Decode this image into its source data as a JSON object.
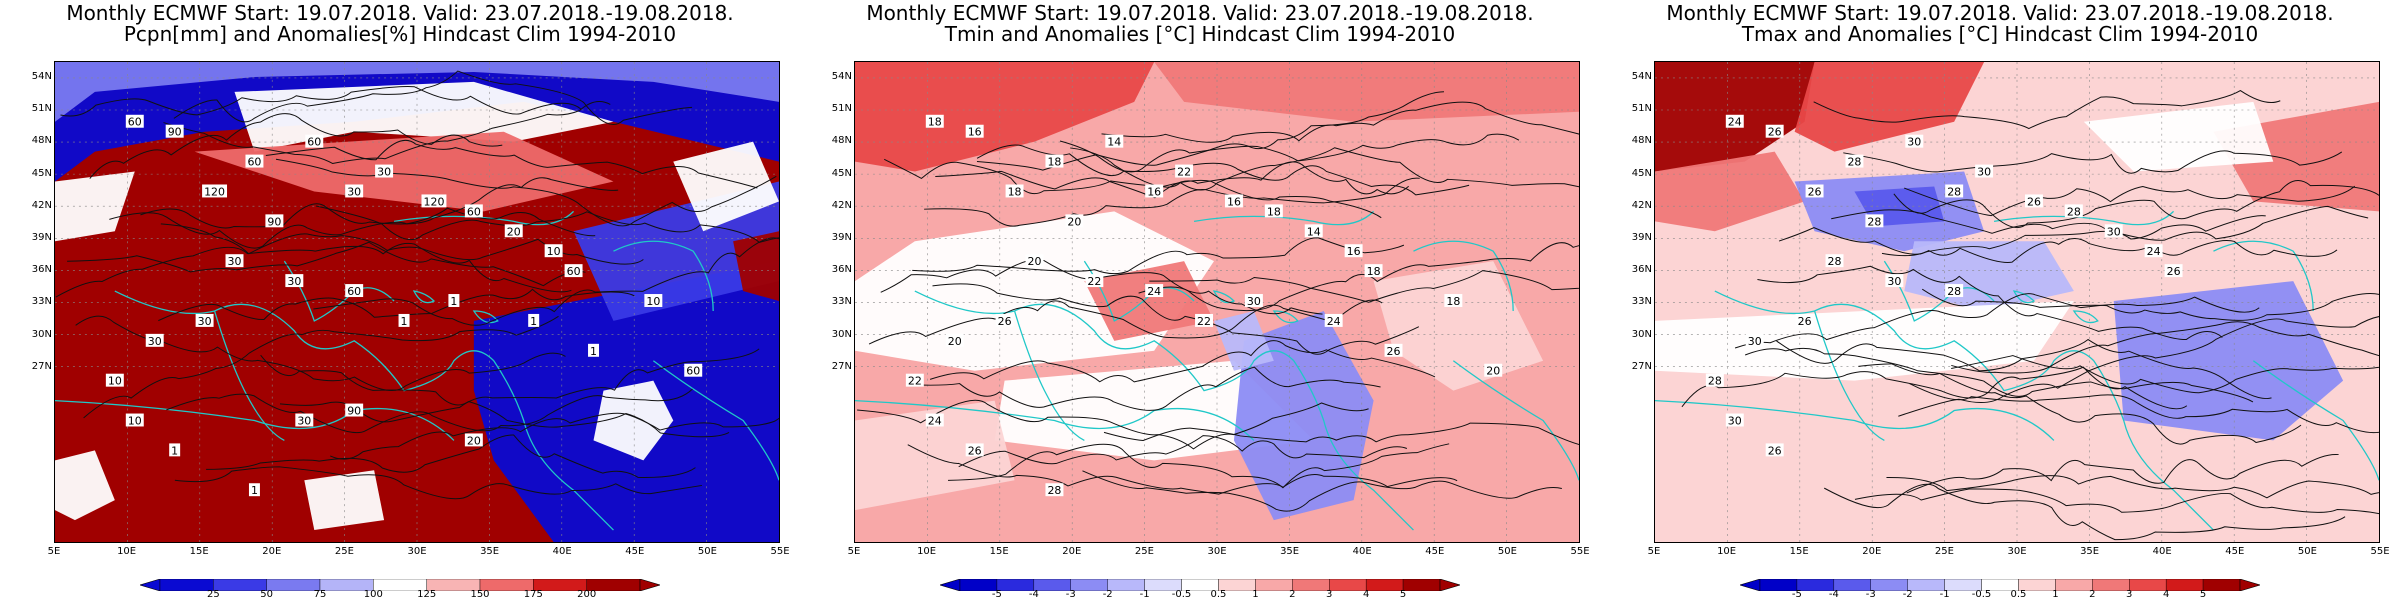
{
  "panels": [
    {
      "title_line1": "Monthly ECMWF Start: 19.07.2018. Valid: 23.07.2018.-19.08.2018.",
      "title_line2": "Pcpn[mm] and Anomalies[%] Hindcast Clim 1994-2010",
      "colorbar_labels": [
        "25",
        "50",
        "75",
        "100",
        "125",
        "150",
        "175",
        "200"
      ],
      "colorbar_colors": [
        "#0a0ad2",
        "#3a3ae6",
        "#7a7af0",
        "#b4b4f8",
        "#ffffff",
        "#f8b4b4",
        "#ee6a6a",
        "#d21a1a",
        "#a00000"
      ],
      "background_color": "#a00000",
      "contour_labels": [
        "60",
        "90",
        "60",
        "60",
        "30",
        "120",
        "90",
        "30",
        "120",
        "60",
        "20",
        "10",
        "60",
        "30",
        "30",
        "60",
        "30",
        "30",
        "10",
        "10",
        "1",
        "1",
        "1",
        "1",
        "1",
        "1",
        "10",
        "60",
        "90",
        "30",
        "20"
      ]
    },
    {
      "title_line1": "Monthly ECMWF Start: 19.07.2018. Valid: 23.07.2018.-19.08.2018.",
      "title_line2": "Tmin and Anomalies [°C] Hindcast Clim 1994-2010",
      "colorbar_labels": [
        "-5",
        "-4",
        "-3",
        "-2",
        "-1",
        "-0.5",
        "0.5",
        "1",
        "2",
        "3",
        "4",
        "5"
      ],
      "colorbar_colors": [
        "#0000c8",
        "#2a2ade",
        "#5a5aec",
        "#8c8cf4",
        "#b8b8fa",
        "#dcdcfc",
        "#ffffff",
        "#fcd4d4",
        "#f8a8a8",
        "#f07878",
        "#e84848",
        "#d21a1a",
        "#a00000"
      ],
      "background_color": "#f8a8a8",
      "contour_labels": [
        "18",
        "16",
        "18",
        "14",
        "16",
        "18",
        "20",
        "22",
        "16",
        "18",
        "14",
        "16",
        "18",
        "20",
        "22",
        "24",
        "26",
        "20",
        "22",
        "24",
        "26",
        "28",
        "30",
        "22",
        "24",
        "26",
        "18",
        "20"
      ]
    },
    {
      "title_line1": "Monthly ECMWF Start: 19.07.2018. Valid: 23.07.2018.-19.08.2018.",
      "title_line2": "Tmax and Anomalies [°C] Hindcast Clim 1994-2010",
      "colorbar_labels": [
        "-5",
        "-4",
        "-3",
        "-2",
        "-1",
        "-0.5",
        "0.5",
        "1",
        "2",
        "3",
        "4",
        "5"
      ],
      "colorbar_colors": [
        "#0000c8",
        "#2a2ade",
        "#5a5aec",
        "#8c8cf4",
        "#b8b8fa",
        "#dcdcfc",
        "#ffffff",
        "#fcd4d4",
        "#f8a8a8",
        "#f07878",
        "#e84848",
        "#d21a1a",
        "#a00000"
      ],
      "background_color": "#fcd4d4",
      "contour_labels": [
        "24",
        "26",
        "28",
        "30",
        "28",
        "26",
        "28",
        "30",
        "26",
        "28",
        "30",
        "24",
        "26",
        "28",
        "30",
        "28",
        "26",
        "30",
        "28",
        "30",
        "26"
      ]
    }
  ],
  "lat_labels": [
    "54N",
    "51N",
    "48N",
    "45N",
    "42N",
    "39N",
    "36N",
    "33N",
    "30N",
    "27N"
  ],
  "lon_labels": [
    "5E",
    "10E",
    "15E",
    "20E",
    "25E",
    "30E",
    "35E",
    "40E",
    "45E",
    "50E",
    "55E"
  ],
  "coast_color": "#20c8c8"
}
